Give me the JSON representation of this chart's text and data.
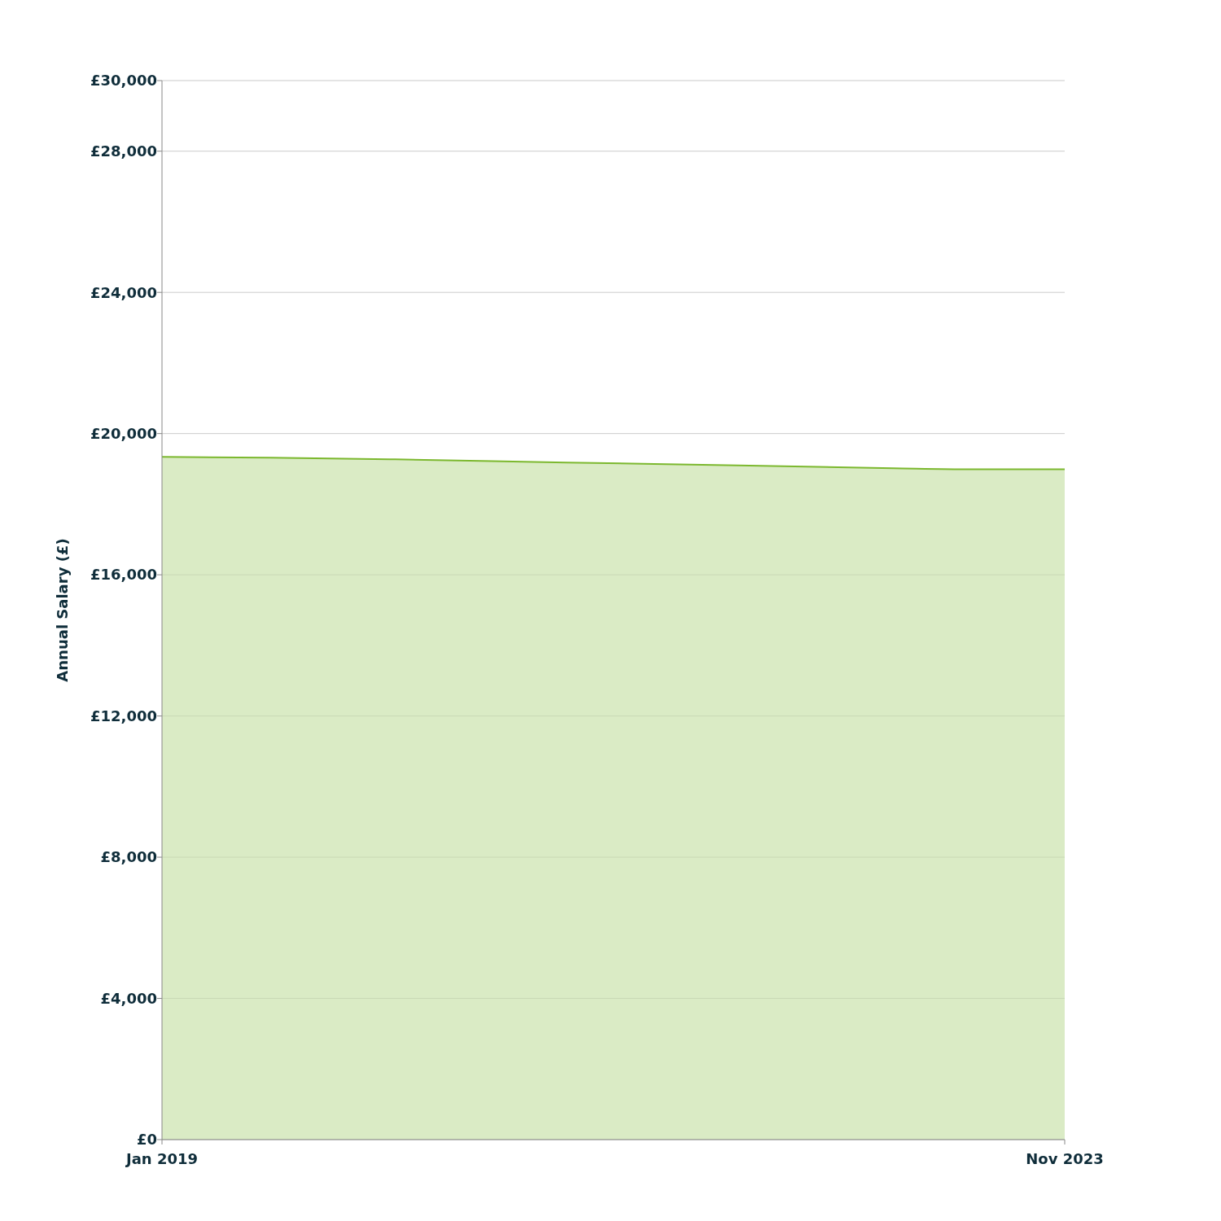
{
  "chart_data": {
    "type": "area",
    "ylabel": "Annual Salary (£)",
    "x": [
      "2019-01",
      "2019-08",
      "2020-04",
      "2021-03",
      "2022-02",
      "2022-12",
      "2023-05",
      "2023-11"
    ],
    "series": [
      {
        "color": "#7cb82f",
        "values": [
          19340,
          19320,
          19270,
          19180,
          19100,
          19020,
          18990,
          18990
        ]
      }
    ],
    "xlim": [
      "2019-01",
      "2023-11"
    ],
    "xticks": [
      {
        "value": "2019-01",
        "label": "Jan 2019"
      },
      {
        "value": "2023-11",
        "label": "Nov 2023"
      }
    ],
    "ylim": [
      0,
      30000
    ],
    "yticks": [
      {
        "value": 0,
        "label": "£0"
      },
      {
        "value": 4000,
        "label": "£4,000"
      },
      {
        "value": 8000,
        "label": "£8,000"
      },
      {
        "value": 12000,
        "label": "£12,000"
      },
      {
        "value": 16000,
        "label": "£16,000"
      },
      {
        "value": 20000,
        "label": "£20,000"
      },
      {
        "value": 24000,
        "label": "£24,000"
      },
      {
        "value": 28000,
        "label": "£28,000"
      },
      {
        "value": 30000,
        "label": "£30,000"
      }
    ],
    "grid": "y"
  }
}
